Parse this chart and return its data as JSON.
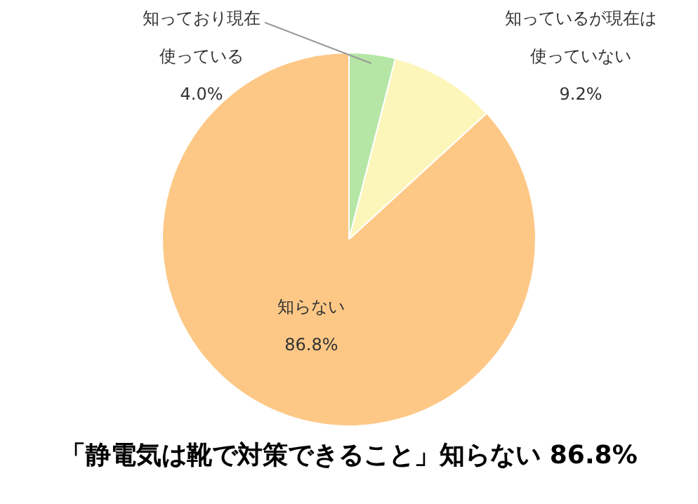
{
  "chart_data": {
    "type": "pie",
    "title": "「静電気は靴で対策できること」知らない 86.8%",
    "categories": [
      "知っており現在使っている",
      "知っているが現在は使っていない",
      "知らない"
    ],
    "values": [
      4.0,
      9.2,
      86.8
    ],
    "value_labels": [
      "4.0%",
      "9.2%",
      "86.8%"
    ],
    "colors": [
      "#b5e6a6",
      "#fdf6bb",
      "#fdc886"
    ],
    "legend": false
  }
}
